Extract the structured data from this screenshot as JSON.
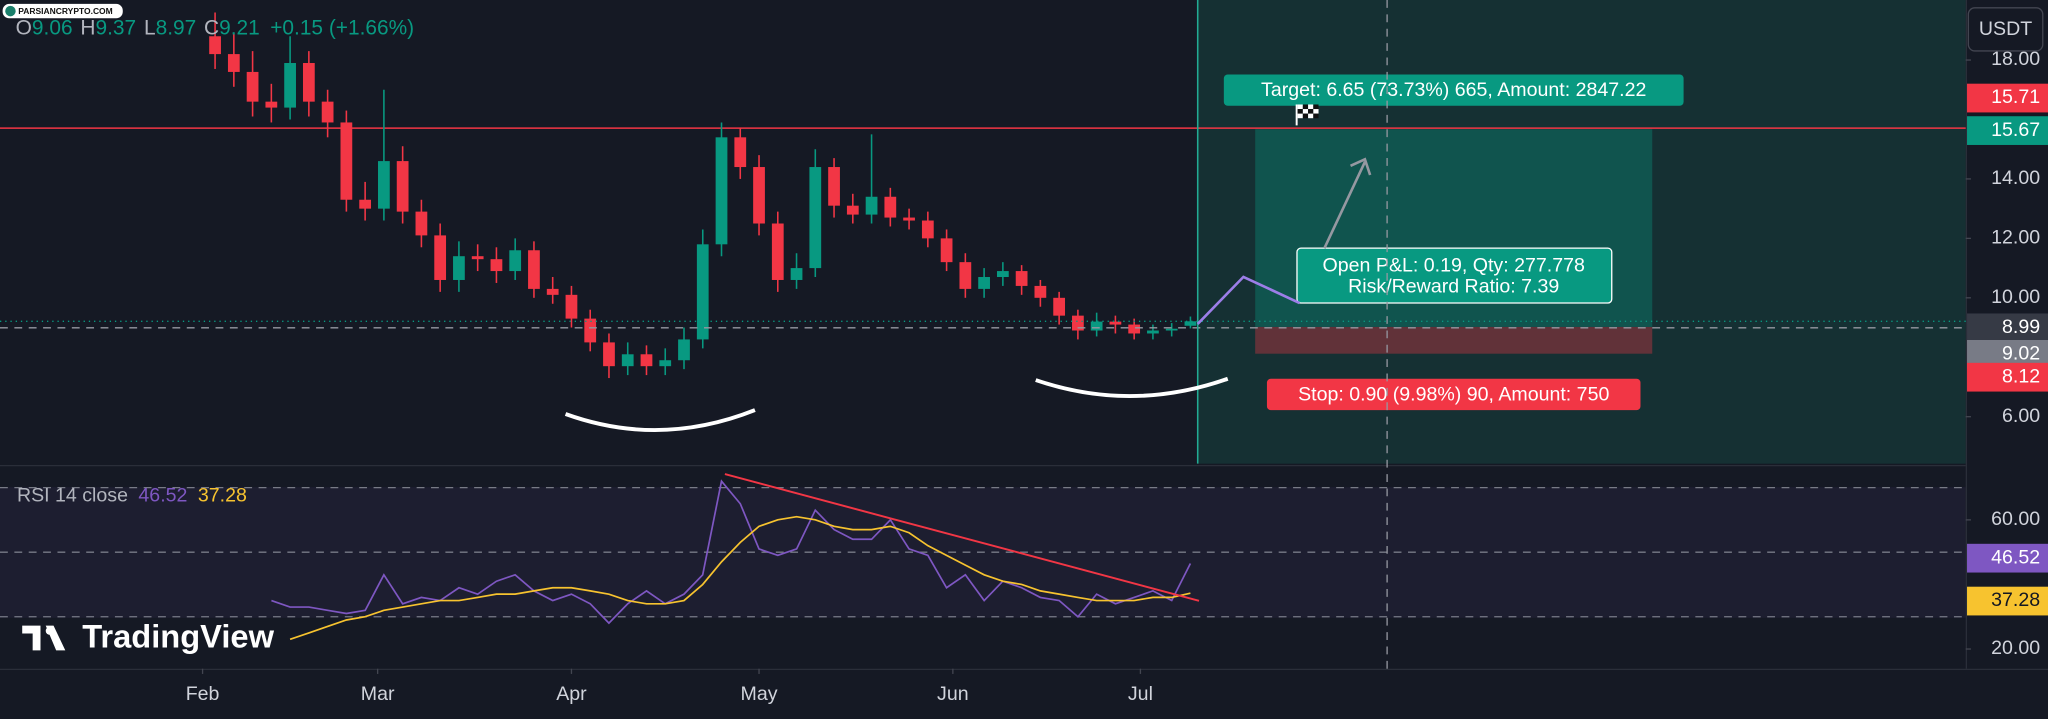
{
  "chart_data": {
    "type": "candlestick",
    "watermark": "PARSIANCRYPTO.COM",
    "branding": "TradingView",
    "quote_currency": "USDT",
    "header": {
      "letters": [
        "O",
        "H",
        "L",
        "C"
      ],
      "change": "+0.15 (+1.66%)"
    },
    "up_color": "#089981",
    "down_color": "#f23645",
    "x": [
      33,
      36,
      39,
      42,
      45,
      48,
      51,
      54,
      57,
      60,
      63,
      66,
      69,
      72,
      75,
      78,
      81,
      84,
      87,
      90,
      93,
      96,
      99,
      102,
      105,
      108,
      111,
      114,
      117,
      120,
      123,
      126,
      129,
      132,
      135,
      138,
      141,
      144,
      147,
      150,
      153,
      156,
      159,
      162,
      165,
      168,
      171,
      174,
      177,
      180,
      183,
      186,
      189
    ],
    "xlim": [
      -1.4,
      313
    ],
    "xticks": [
      {
        "value": 31,
        "label": "Feb"
      },
      {
        "value": 59,
        "label": "Mar"
      },
      {
        "value": 90,
        "label": "Apr"
      },
      {
        "value": 120,
        "label": "May"
      },
      {
        "value": 151,
        "label": "Jun"
      },
      {
        "value": 181,
        "label": "Jul"
      }
    ],
    "open": [
      18.8,
      18.2,
      17.6,
      16.6,
      16.4,
      17.9,
      16.6,
      15.9,
      13.3,
      13.0,
      14.6,
      12.9,
      12.1,
      10.6,
      11.4,
      11.3,
      10.9,
      11.6,
      10.3,
      10.1,
      9.3,
      8.5,
      7.7,
      8.1,
      7.7,
      7.9,
      8.6,
      11.8,
      15.4,
      14.4,
      12.5,
      10.6,
      11.0,
      14.4,
      13.1,
      12.8,
      13.4,
      12.7,
      12.6,
      12.0,
      11.2,
      10.3,
      10.7,
      10.9,
      10.4,
      10.0,
      9.4,
      8.9,
      9.2,
      9.1,
      8.8,
      8.9,
      9.06
    ],
    "high": [
      19.6,
      18.9,
      18.3,
      17.2,
      18.8,
      18.3,
      17.0,
      16.3,
      13.9,
      17.0,
      15.1,
      13.3,
      12.5,
      11.9,
      11.8,
      11.7,
      12.0,
      11.9,
      10.7,
      10.4,
      9.6,
      8.8,
      8.5,
      8.4,
      8.3,
      9.0,
      12.3,
      15.9,
      15.7,
      14.8,
      12.9,
      11.5,
      15.0,
      14.7,
      13.5,
      15.5,
      13.7,
      13.0,
      12.9,
      12.3,
      11.5,
      11.0,
      11.2,
      11.1,
      10.6,
      10.2,
      9.6,
      9.5,
      9.4,
      9.3,
      9.1,
      9.15,
      9.37
    ],
    "low": [
      17.7,
      17.1,
      16.1,
      15.9,
      16.0,
      16.1,
      15.4,
      12.9,
      12.6,
      12.6,
      12.5,
      11.7,
      10.2,
      10.2,
      10.9,
      10.5,
      10.6,
      10.0,
      9.8,
      9.0,
      8.2,
      7.3,
      7.4,
      7.4,
      7.4,
      7.6,
      8.3,
      11.4,
      14.0,
      12.1,
      10.2,
      10.3,
      10.7,
      12.7,
      12.5,
      12.5,
      12.4,
      12.3,
      11.7,
      10.9,
      10.0,
      10.0,
      10.4,
      10.1,
      9.7,
      9.1,
      8.6,
      8.7,
      8.8,
      8.6,
      8.6,
      8.7,
      8.97
    ],
    "close": [
      18.2,
      17.6,
      16.6,
      16.4,
      17.9,
      16.6,
      15.9,
      13.3,
      13.0,
      14.6,
      12.9,
      12.1,
      10.6,
      11.4,
      11.3,
      10.9,
      11.6,
      10.3,
      10.1,
      9.3,
      8.5,
      7.7,
      8.1,
      7.7,
      7.9,
      8.6,
      11.8,
      15.4,
      14.4,
      12.5,
      10.6,
      11.0,
      14.4,
      13.1,
      12.8,
      13.4,
      12.7,
      12.6,
      12.0,
      11.2,
      10.3,
      10.7,
      10.9,
      10.4,
      10.0,
      9.4,
      8.9,
      9.2,
      9.1,
      8.8,
      8.9,
      8.96,
      9.21
    ],
    "ylim": [
      4.42,
      20.02
    ],
    "yticks": [
      {
        "value": 6,
        "label": "6.00"
      },
      {
        "value": 10,
        "label": "10.00"
      },
      {
        "value": 12,
        "label": "12.00"
      },
      {
        "value": 14,
        "label": "14.00"
      },
      {
        "value": 18,
        "label": "18.00"
      }
    ],
    "horizontal_line": {
      "value": 15.71,
      "color": "#f23645"
    },
    "crosshair_price": 8.99,
    "position": {
      "target": 15.67,
      "entry": 9.02,
      "stop": 8.12,
      "target_label": "Target: 6.65 (73.73%) 665, Amount: 2847.22",
      "info_lines": [
        "Open P&L: 0.19, Qty: 277.778",
        "Risk/Reward Ratio: 7.39"
      ],
      "stop_label": "Stop: 0.90 (9.98%) 90, Amount: 750"
    },
    "indicator": {
      "title": "RSI 14 close",
      "ylim": [
        13.9,
        76.2
      ],
      "yticks": [
        {
          "value": 20,
          "label": "20.00"
        },
        {
          "value": 60,
          "label": "60.00"
        }
      ],
      "levels": [
        30,
        50,
        70
      ],
      "series": [
        {
          "color": "#7e57c2",
          "values": [
            null,
            null,
            null,
            35,
            33,
            33,
            32,
            31,
            32,
            43,
            34,
            36,
            35,
            39,
            37,
            41,
            43,
            38,
            35,
            37,
            34,
            28,
            34,
            38,
            34,
            37,
            43,
            72,
            65,
            51,
            49,
            51,
            63,
            57,
            54,
            54,
            60,
            51,
            49,
            39,
            43,
            35,
            41,
            39,
            36,
            35,
            30,
            37,
            34,
            36,
            38,
            35,
            46.52
          ]
        },
        {
          "color": "#f7c32f",
          "values": [
            null,
            null,
            null,
            null,
            23,
            25,
            27,
            29,
            30,
            32,
            33,
            34,
            35,
            35,
            36,
            37,
            37,
            38,
            39,
            39,
            38,
            37,
            35,
            34,
            34,
            35,
            40,
            47,
            53,
            58,
            60,
            61,
            60,
            58,
            57,
            57,
            58,
            56,
            52,
            49,
            46,
            43,
            41,
            40,
            38,
            37,
            36,
            35,
            35,
            35,
            36,
            36,
            37.28
          ]
        }
      ]
    }
  }
}
